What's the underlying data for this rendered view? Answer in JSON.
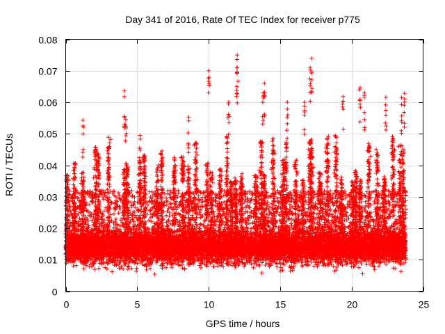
{
  "chart_data": {
    "type": "scatter",
    "title": "Day 341 of 2016, Rate Of TEC Index for receiver p775",
    "xlabel": "GPS time / hours",
    "ylabel": "ROTI / TECUs",
    "xlim": [
      0,
      25
    ],
    "ylim": [
      0,
      0.08
    ],
    "xticks": [
      0,
      5,
      10,
      15,
      20,
      25
    ],
    "xtick_labels": [
      "0",
      "5",
      "10",
      "15",
      "20",
      "25"
    ],
    "yticks": [
      0,
      0.01,
      0.02,
      0.03,
      0.04,
      0.05,
      0.06,
      0.07,
      0.08
    ],
    "ytick_labels": [
      "0",
      "0.01",
      "0.02",
      "0.03",
      "0.04",
      "0.05",
      "0.06",
      "0.07",
      "0.08"
    ],
    "grid": true,
    "marker": "+",
    "series": [
      {
        "name": "ROTI",
        "color": "#ff0000",
        "x_range": [
          0.0,
          23.8
        ],
        "typical_range": [
          0.004,
          0.03
        ],
        "bulk_center": 0.012,
        "burst_hours": [
          0.1,
          0.6,
          1.2,
          2.1,
          2.3,
          3.0,
          4.1,
          4.3,
          5.2,
          5.5,
          6.4,
          6.7,
          7.6,
          8.2,
          8.6,
          9.1,
          9.9,
          10.2,
          10.8,
          11.3,
          11.6,
          11.9,
          12.3,
          13.3,
          13.7,
          13.9,
          14.5,
          15.2,
          15.4,
          16.1,
          16.6,
          17.1,
          17.2,
          17.8,
          18.3,
          18.9,
          19.3,
          20.1,
          20.3,
          20.6,
          21.2,
          21.8,
          22.3,
          22.9,
          23.4,
          23.6
        ],
        "highlighted_points": [
          {
            "x": 12.0,
            "y": 0.075
          },
          {
            "x": 12.0,
            "y": 0.071
          },
          {
            "x": 10.0,
            "y": 0.07
          },
          {
            "x": 17.2,
            "y": 0.074
          },
          {
            "x": 17.1,
            "y": 0.071
          },
          {
            "x": 4.1,
            "y": 0.0637
          },
          {
            "x": 13.9,
            "y": 0.066
          },
          {
            "x": 13.8,
            "y": 0.063
          },
          {
            "x": 20.6,
            "y": 0.0646
          },
          {
            "x": 20.9,
            "y": 0.063
          },
          {
            "x": 23.7,
            "y": 0.0628
          },
          {
            "x": 23.5,
            "y": 0.0615
          },
          {
            "x": 22.4,
            "y": 0.0616
          },
          {
            "x": 19.4,
            "y": 0.0618
          },
          {
            "x": 16.7,
            "y": 0.06
          },
          {
            "x": 15.5,
            "y": 0.06
          },
          {
            "x": 11.4,
            "y": 0.06
          },
          {
            "x": 1.2,
            "y": 0.0543
          },
          {
            "x": 8.6,
            "y": 0.0553
          },
          {
            "x": 5.2,
            "y": 0.0495
          },
          {
            "x": 4.2,
            "y": 0.0545
          }
        ]
      }
    ]
  }
}
